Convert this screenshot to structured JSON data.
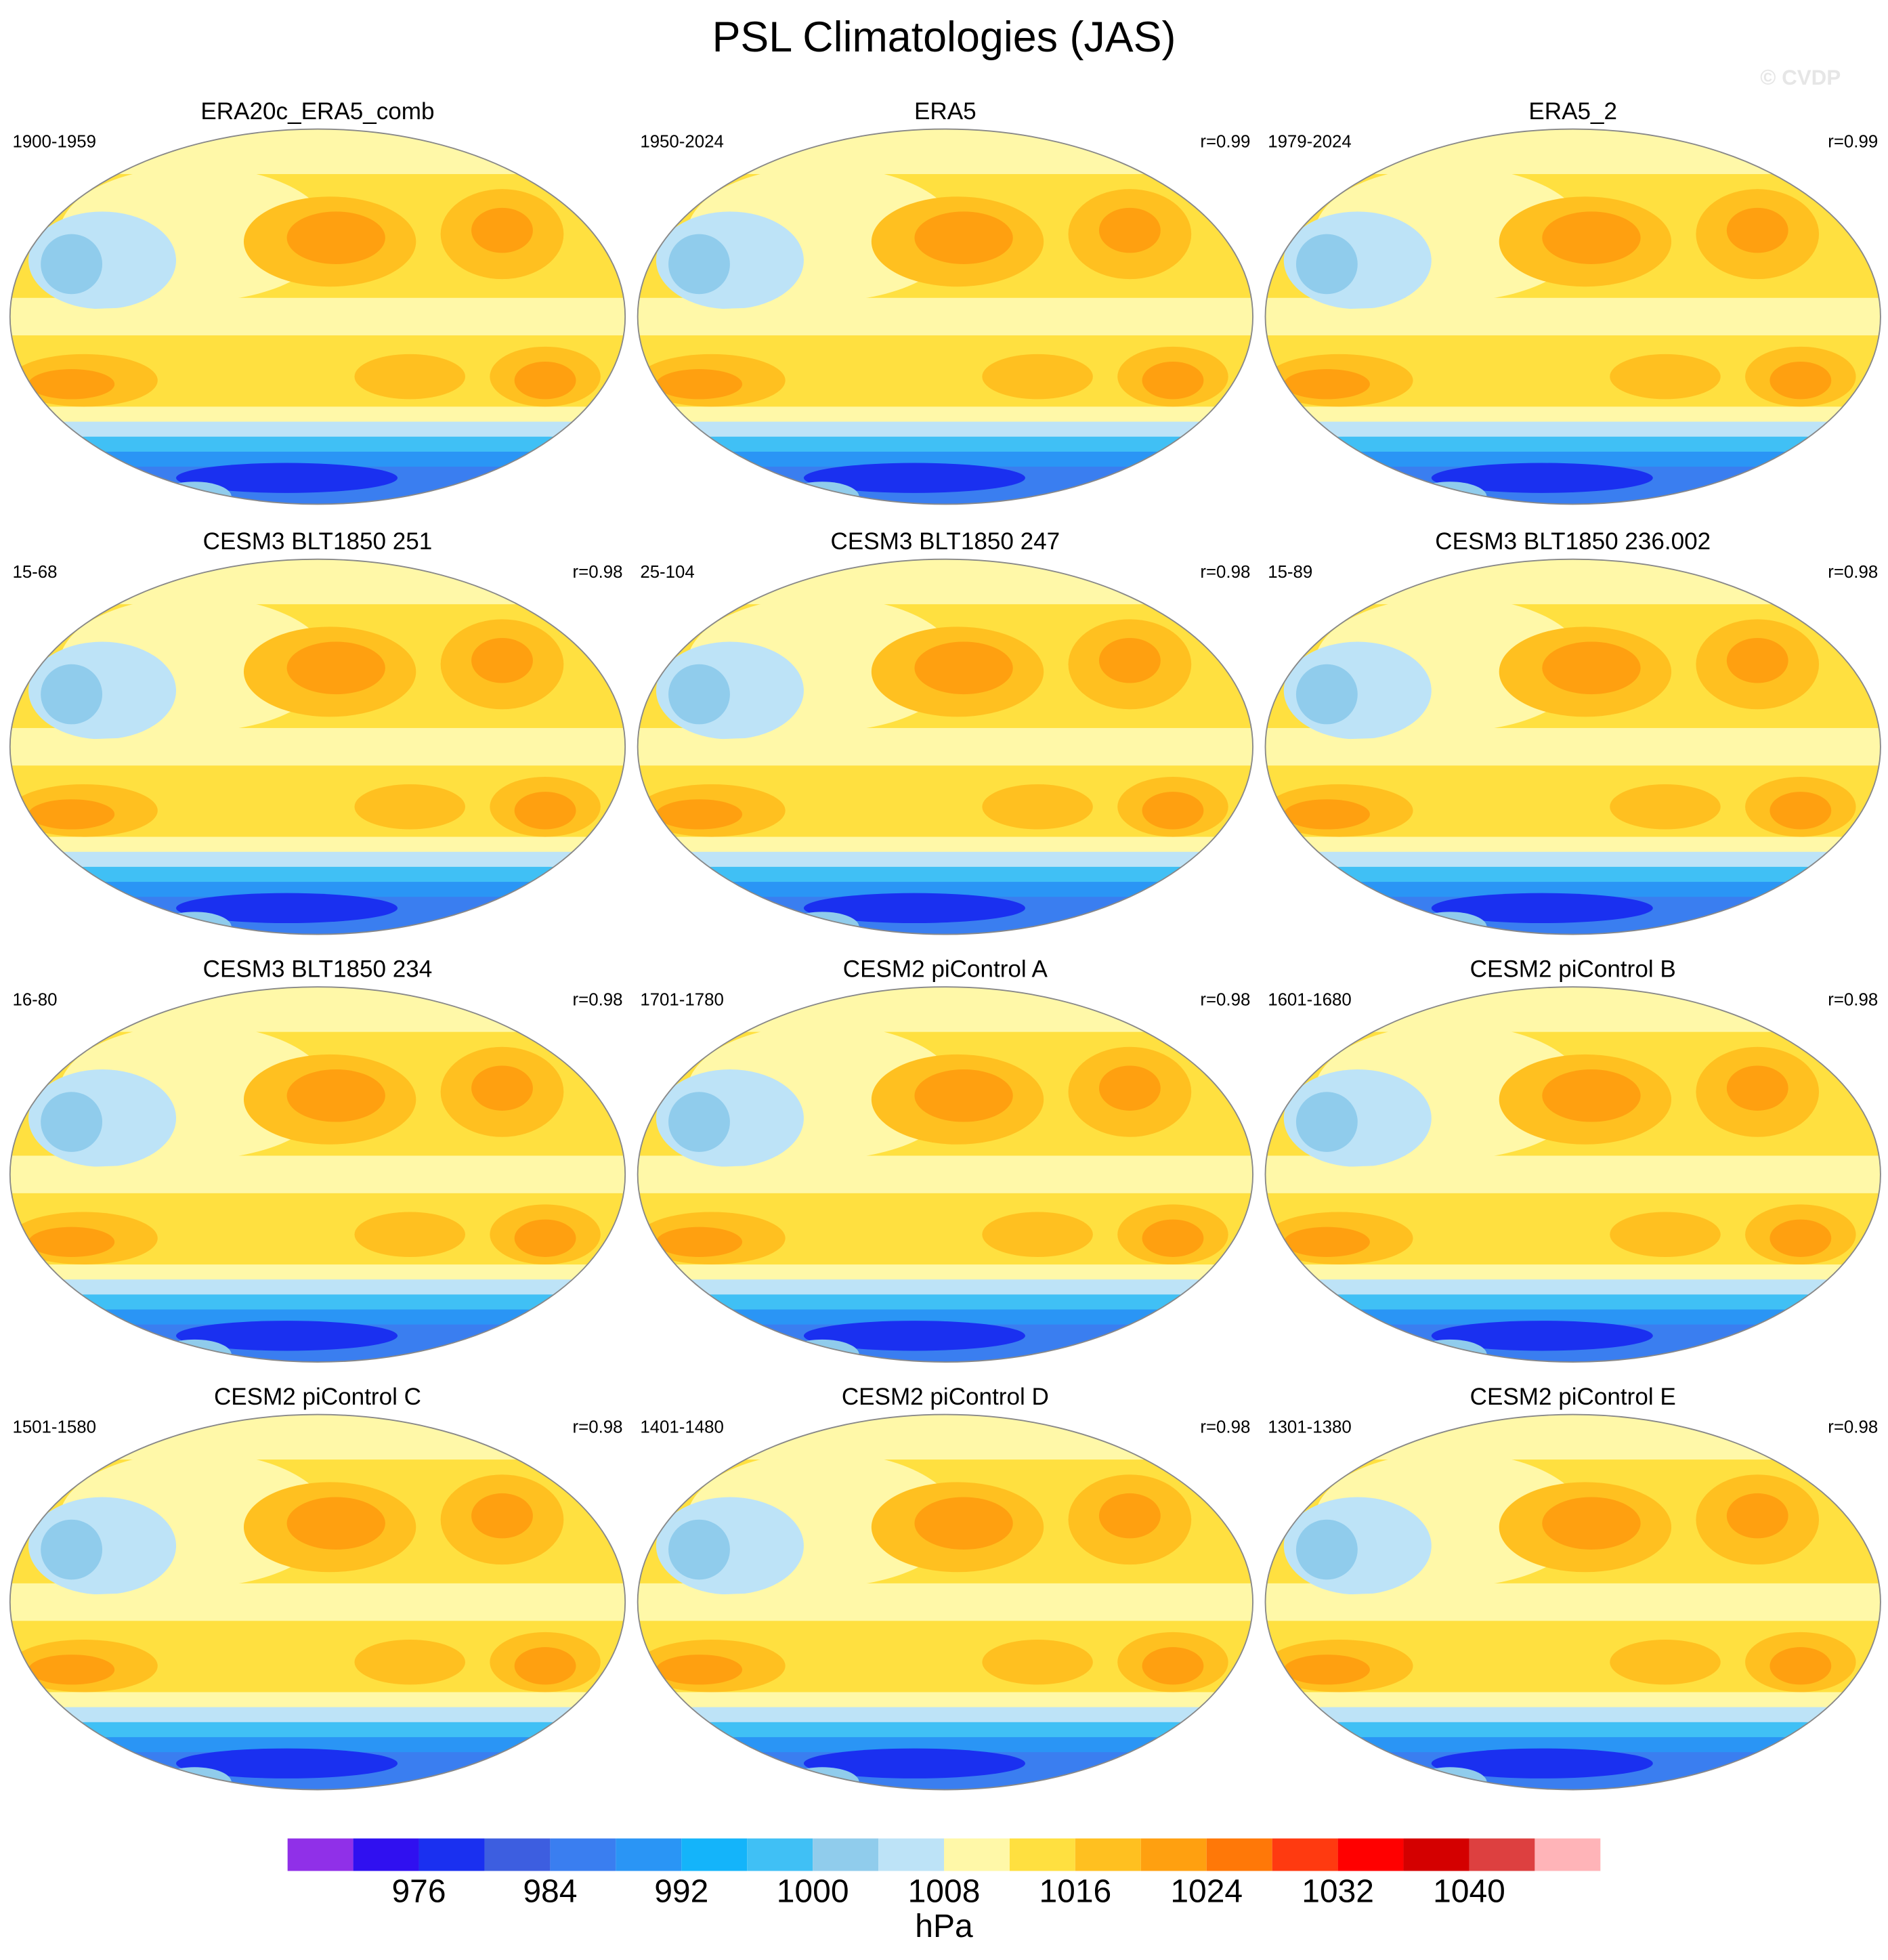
{
  "chart_data": {
    "type": "map_panels",
    "title": "PSL Climatologies (JAS)",
    "watermark": "© CVDP",
    "panels": [
      {
        "title": "ERA20c_ERA5_comb",
        "period": "1900-1959"
      },
      {
        "title": "ERA5",
        "period": "1950-2024",
        "r": "r=0.99"
      },
      {
        "title": "ERA5_2",
        "period": "1979-2024",
        "r": "r=0.99"
      },
      {
        "title": "CESM3 BLT1850 251",
        "period": "15-68",
        "r": "r=0.98"
      },
      {
        "title": "CESM3 BLT1850 247",
        "period": "25-104",
        "r": "r=0.98"
      },
      {
        "title": "CESM3 BLT1850 236.002",
        "period": "15-89",
        "r": "r=0.98"
      },
      {
        "title": "CESM3 BLT1850 234",
        "period": "16-80",
        "r": "r=0.98"
      },
      {
        "title": "CESM2 piControl A",
        "period": "1701-1780",
        "r": "r=0.98"
      },
      {
        "title": "CESM2 piControl B",
        "period": "1601-1680",
        "r": "r=0.98"
      },
      {
        "title": "CESM2 piControl C",
        "period": "1501-1580",
        "r": "r=0.98"
      },
      {
        "title": "CESM2 piControl D",
        "period": "1401-1480",
        "r": "r=0.98"
      },
      {
        "title": "CESM2 piControl E",
        "period": "1301-1380",
        "r": "r=0.98"
      }
    ],
    "colorbar": {
      "label": "hPa",
      "lim": [
        968,
        1048
      ],
      "ticks": [
        976,
        984,
        992,
        1000,
        1008,
        1016,
        1024,
        1032,
        1040
      ],
      "colors": [
        "#9030e8",
        "#3010f0",
        "#1a30f0",
        "#3d5ee0",
        "#3a7ef0",
        "#2a95f5",
        "#14b4fa",
        "#40c0f5",
        "#90ccec",
        "#bde3f7",
        "#fff8a8",
        "#ffe040",
        "#ffc020",
        "#ffa010",
        "#ff7808",
        "#ff3a10",
        "#ff0000",
        "#d40000",
        "#dd4040",
        "#ffb4b8"
      ]
    }
  }
}
